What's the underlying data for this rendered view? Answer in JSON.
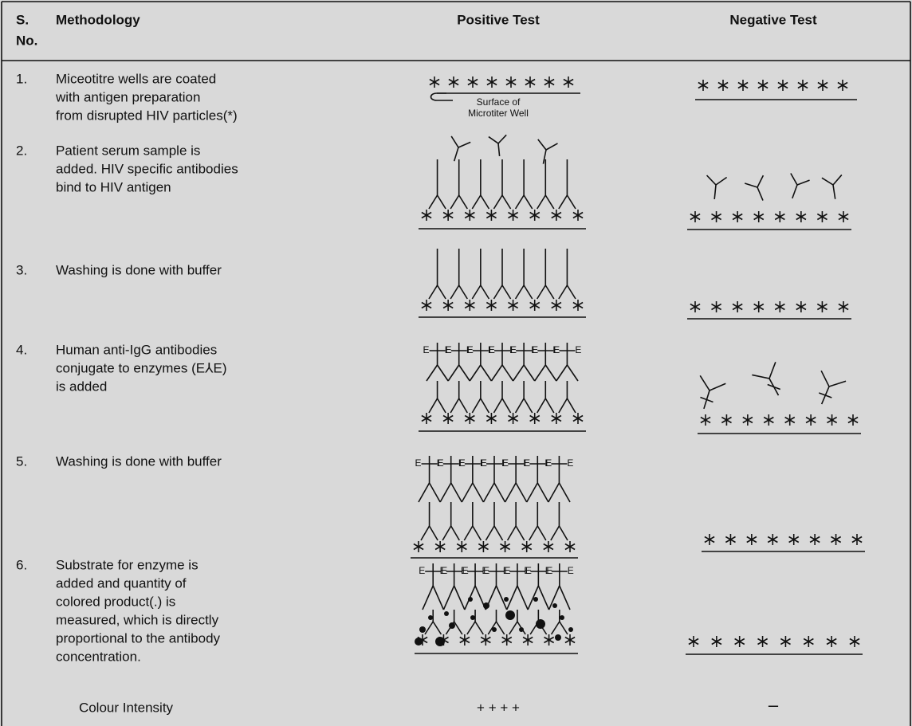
{
  "header": {
    "sno": [
      "S.",
      "No."
    ],
    "methodology": "Methodology",
    "positive": "Positive Test",
    "negative": "Negative Test"
  },
  "rows": [
    {
      "num": "1.",
      "lines": [
        "Miceotitre wells are coated",
        "with antigen preparation",
        "from disrupted HIV particles(*)"
      ]
    },
    {
      "num": "2.",
      "lines": [
        "Patient serum sample is",
        "added. HIV specific antibodies",
        "bind to HIV antigen"
      ]
    },
    {
      "num": "3.",
      "lines": [
        "Washing is done with buffer"
      ]
    },
    {
      "num": "4.",
      "lines": [
        "Human anti-IgG antibodies",
        "conjugate to enzymes (E⅄E)",
        "is added"
      ]
    },
    {
      "num": "5.",
      "lines": [
        "Washing is done with buffer"
      ]
    },
    {
      "num": "6.",
      "lines": [
        "Substrate for enzyme is",
        "added and quantity of",
        "colored product(.) is",
        "measured, which is directly",
        "proportional to the antibody",
        "concentration."
      ]
    }
  ],
  "diagram_labels": {
    "surface": [
      "Surface of",
      "Microtiter Well"
    ],
    "enzyme": "E"
  },
  "footer": {
    "label": "Colour Intensity",
    "positive": "+ + + +",
    "negative": "–"
  }
}
